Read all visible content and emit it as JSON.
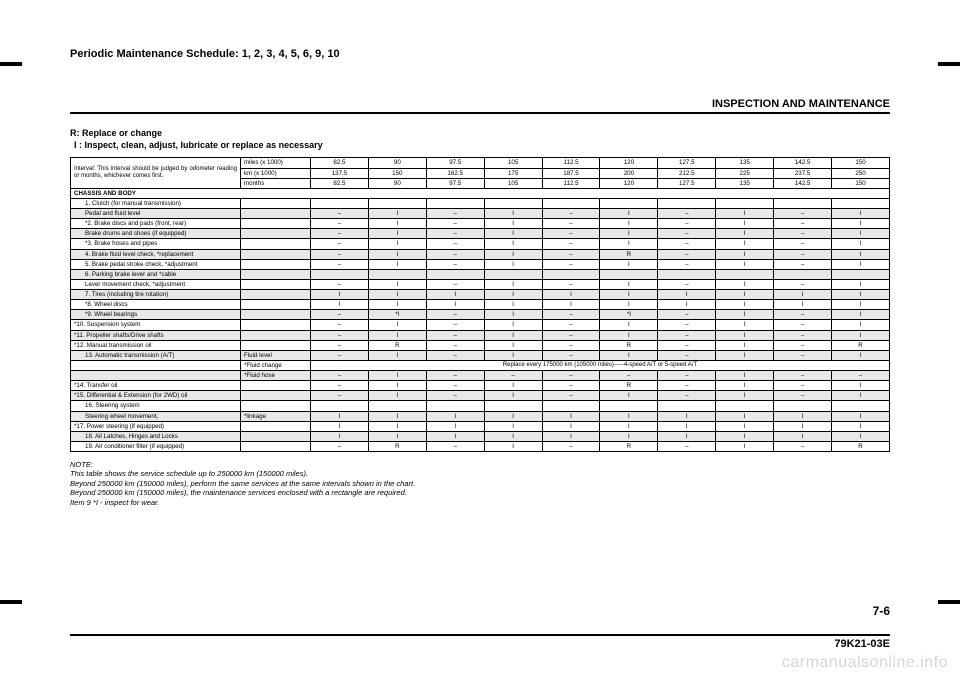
{
  "top_title": "Periodic Maintenance Schedule: 1, 2, 3, 4, 5, 6, 9, 10",
  "section_header": "INSPECTION AND MAINTENANCE",
  "legend": {
    "line1": "R: Replace or change",
    "line2": "I : Inspect, clean, adjust, lubricate or replace as necessary"
  },
  "interval_text": "Interval: This interval should be judged by odometer reading or months, whichever comes first.",
  "row_headers": {
    "miles": "miles (x 1000)",
    "km": "km (x 1000)",
    "months": "months"
  },
  "cols": {
    "miles": [
      "82.5",
      "90",
      "97.5",
      "105",
      "112.5",
      "120",
      "127.5",
      "135",
      "142.5",
      "150"
    ],
    "km": [
      "137.5",
      "150",
      "162.5",
      "175",
      "187.5",
      "200",
      "212.5",
      "225",
      "237.5",
      "250"
    ],
    "months": [
      "82.5",
      "90",
      "97.5",
      "105",
      "112.5",
      "120",
      "127.5",
      "135",
      "142.5",
      "150"
    ]
  },
  "section_label": "CHASSIS AND BODY",
  "rows": [
    {
      "label": "1. Clutch (for manual transmission)",
      "indent": 1,
      "shaded": false,
      "vals": [
        "",
        "",
        "",
        "",
        "",
        "",
        "",
        "",
        "",
        ""
      ],
      "sub": ""
    },
    {
      "label": "Pedal and fluid level",
      "indent": 2,
      "shaded": true,
      "vals": [
        "–",
        "I",
        "–",
        "I",
        "–",
        "I",
        "–",
        "I",
        "–",
        "I"
      ],
      "sub": ""
    },
    {
      "label": "*2. Brake discs and pads (front, rear)",
      "indent": 1,
      "shaded": false,
      "vals": [
        "–",
        "I",
        "–",
        "I",
        "–",
        "I",
        "–",
        "I",
        "–",
        "I"
      ],
      "sub": ""
    },
    {
      "label": "Brake drums and shoes (if equipped)",
      "indent": 2,
      "shaded": true,
      "vals": [
        "–",
        "I",
        "–",
        "I",
        "–",
        "I",
        "–",
        "I",
        "–",
        "I"
      ],
      "sub": ""
    },
    {
      "label": "*3. Brake hoses and pipes",
      "indent": 1,
      "shaded": false,
      "vals": [
        "–",
        "I",
        "–",
        "I",
        "–",
        "I",
        "–",
        "I",
        "–",
        "I"
      ],
      "sub": ""
    },
    {
      "label": "4. Brake fluid level check, *replacement",
      "indent": 1,
      "shaded": true,
      "vals": [
        "–",
        "I",
        "–",
        "I",
        "–",
        "R",
        "–",
        "I",
        "–",
        "I"
      ],
      "sub": ""
    },
    {
      "label": "5. Brake pedal stroke check, *adjustment",
      "indent": 1,
      "shaded": false,
      "vals": [
        "–",
        "I",
        "–",
        "I",
        "–",
        "I",
        "–",
        "I",
        "–",
        "I"
      ],
      "sub": ""
    },
    {
      "label": "6. Parking brake lever and *cable",
      "indent": 1,
      "shaded": true,
      "vals": [
        "",
        "",
        "",
        "",
        "",
        "",
        "",
        "",
        "",
        ""
      ],
      "sub": ""
    },
    {
      "label": "Lever movement check, *adjustment",
      "indent": 2,
      "shaded": false,
      "vals": [
        "–",
        "I",
        "–",
        "I",
        "–",
        "I",
        "–",
        "I",
        "–",
        "I"
      ],
      "sub": ""
    },
    {
      "label": "7. Tires (including tire rotation)",
      "indent": 1,
      "shaded": true,
      "vals": [
        "I",
        "I",
        "I",
        "I",
        "I",
        "I",
        "I",
        "I",
        "I",
        "I"
      ],
      "sub": ""
    },
    {
      "label": "*8. Wheel discs",
      "indent": 1,
      "shaded": false,
      "vals": [
        "I",
        "I",
        "I",
        "I",
        "I",
        "I",
        "I",
        "I",
        "I",
        "I"
      ],
      "sub": ""
    },
    {
      "label": "*9. Wheel bearings",
      "indent": 1,
      "shaded": true,
      "vals": [
        "–",
        "*I",
        "–",
        "I",
        "–",
        "*I",
        "–",
        "I",
        "–",
        "I"
      ],
      "sub": ""
    },
    {
      "label": "*10. Suspension system",
      "indent": 0,
      "shaded": false,
      "vals": [
        "–",
        "I",
        "–",
        "I",
        "–",
        "I",
        "–",
        "I",
        "–",
        "I"
      ],
      "sub": ""
    },
    {
      "label": "*11. Propeller shafts/Drive shafts",
      "indent": 0,
      "shaded": true,
      "vals": [
        "–",
        "I",
        "–",
        "I",
        "–",
        "I",
        "–",
        "I",
        "–",
        "I"
      ],
      "sub": ""
    },
    {
      "label": "*12. Manual transmission oil",
      "indent": 0,
      "shaded": false,
      "vals": [
        "–",
        "R",
        "–",
        "I",
        "–",
        "R",
        "–",
        "I",
        "–",
        "R"
      ],
      "sub": ""
    },
    {
      "label": "13. Automatic transmission (A/T)",
      "indent": 1,
      "shaded": true,
      "vals": [
        "–",
        "I",
        "–",
        "I",
        "–",
        "I",
        "–",
        "I",
        "–",
        "I"
      ],
      "sub": "Fluid level"
    },
    {
      "label": "",
      "indent": 1,
      "shaded": false,
      "span": true,
      "span_text": "Replace every 175000 km (105000 miles)-----4-speed A/T or 5-speed A/T",
      "sub": "*Fluid change"
    },
    {
      "label": "",
      "indent": 1,
      "shaded": true,
      "vals": [
        "–",
        "I",
        "–",
        "–",
        "–",
        "–",
        "–",
        "I",
        "–",
        "–"
      ],
      "sub": "*Fluid hose"
    },
    {
      "label": "*14. Transfer oil",
      "indent": 0,
      "shaded": false,
      "vals": [
        "–",
        "I",
        "–",
        "I",
        "–",
        "R",
        "–",
        "I",
        "–",
        "I"
      ],
      "sub": ""
    },
    {
      "label": "*15. Differential & Extension (for 2WD) oil",
      "indent": 0,
      "shaded": true,
      "vals": [
        "–",
        "I",
        "–",
        "I",
        "–",
        "I",
        "–",
        "I",
        "–",
        "I"
      ],
      "sub": ""
    },
    {
      "label": "16. Steering system",
      "indent": 1,
      "shaded": false,
      "vals": [
        "",
        "",
        "",
        "",
        "",
        "",
        "",
        "",
        "",
        ""
      ],
      "sub": ""
    },
    {
      "label": "Steering wheel movement,",
      "indent": 2,
      "shaded": true,
      "vals": [
        "I",
        "I",
        "I",
        "I",
        "I",
        "I",
        "I",
        "I",
        "I",
        "I"
      ],
      "sub": "*linkage"
    },
    {
      "label": "*17. Power steering (if equipped)",
      "indent": 0,
      "shaded": false,
      "vals": [
        "I",
        "I",
        "I",
        "I",
        "I",
        "I",
        "I",
        "I",
        "I",
        "I"
      ],
      "sub": ""
    },
    {
      "label": "18. All Latches, Hinges and Locks",
      "indent": 1,
      "shaded": true,
      "vals": [
        "I",
        "I",
        "I",
        "I",
        "I",
        "I",
        "I",
        "I",
        "I",
        "I"
      ],
      "sub": ""
    },
    {
      "label": "19. Air conditioner filter (if equipped)",
      "indent": 1,
      "shaded": false,
      "vals": [
        "–",
        "R",
        "–",
        "I",
        "–",
        "R",
        "–",
        "I",
        "–",
        "R"
      ],
      "sub": ""
    }
  ],
  "note": {
    "head": "NOTE:",
    "l1": "This table shows the service schedule up to 250000 km (150000 miles).",
    "l2": "Beyond 250000 km (150000 miles), perform the same services at the same intervals shown in the chart.",
    "l3": "Beyond 250000 km (150000 miles), the maintenance services enclosed with a rectangle are required.",
    "l4": "Item 9 *I - inspect for wear."
  },
  "page_num": "7-6",
  "doc_code": "79K21-03E",
  "watermark": "carmanualsonline.info",
  "colors": {
    "shaded": "#e8e8e8",
    "text": "#000000",
    "background": "#ffffff",
    "watermark": "#d6d6d6"
  }
}
